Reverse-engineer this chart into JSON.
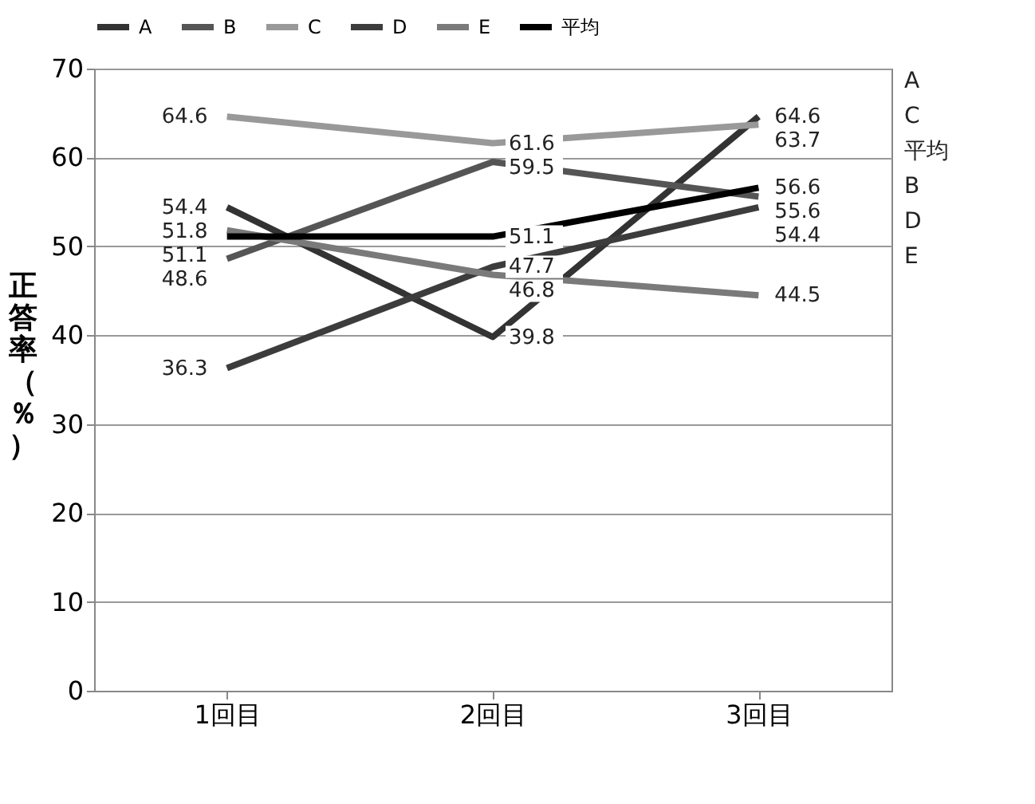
{
  "chart_data": {
    "type": "line",
    "ylabel": "正答率（％）",
    "categories": [
      "1回目",
      "2回目",
      "3回目"
    ],
    "series": [
      {
        "name": "A",
        "color": "#333333",
        "values": [
          54.4,
          39.8,
          64.6
        ]
      },
      {
        "name": "B",
        "color": "#555555",
        "values": [
          48.6,
          59.5,
          55.6
        ]
      },
      {
        "name": "C",
        "color": "#999999",
        "values": [
          64.6,
          61.6,
          63.7
        ]
      },
      {
        "name": "D",
        "color": "#3c3c3c",
        "values": [
          36.3,
          47.7,
          54.4
        ]
      },
      {
        "name": "E",
        "color": "#7a7a7a",
        "values": [
          51.8,
          46.8,
          44.5
        ]
      },
      {
        "name": "平均",
        "color": "#000000",
        "values": [
          51.1,
          51.1,
          56.6
        ]
      }
    ],
    "annotations": [
      "A",
      "C",
      "平均",
      "B",
      "D",
      "E"
    ],
    "ylim": [
      0,
      70
    ],
    "yticks": [
      0,
      10,
      20,
      30,
      40,
      50,
      60,
      70
    ],
    "grid": "y",
    "legend": "top",
    "data_labels": true,
    "marker": "none",
    "line_style": "solid"
  }
}
